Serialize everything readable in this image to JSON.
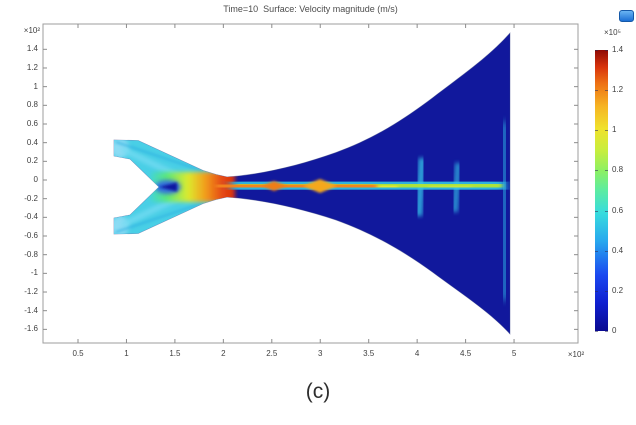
{
  "header": {
    "title": "Time=10  Surface: Velocity magnitude (m/s)"
  },
  "caption": "(c)",
  "axes": {
    "x": {
      "multiplier": "×10²",
      "ticks": [
        "0.5",
        "1",
        "1.5",
        "2",
        "2.5",
        "3",
        "3.5",
        "4",
        "4.5",
        "5"
      ]
    },
    "y": {
      "multiplier": "×10²",
      "ticks": [
        "1.4",
        "1.2",
        "1",
        "0.8",
        "0.6",
        "0.4",
        "0.2",
        "0",
        "-0.2",
        "-0.4",
        "-0.6",
        "-0.8",
        "-1",
        "-1.2",
        "-1.4",
        "-1.6"
      ]
    }
  },
  "colorbar": {
    "multiplier": "×10⁵",
    "ticks": [
      "1.4",
      "1.2",
      "1",
      "0.8",
      "0.6",
      "0.4",
      "0.2",
      "0"
    ],
    "min": 0,
    "max": 1.4,
    "colormap": "jet"
  },
  "icons": {
    "toolbar_icon": "graphics-toolbar-icon"
  },
  "colors": {
    "domain_navy": "#11189c",
    "jet_red": "#d92f10",
    "jet_orange": "#f3831c",
    "jet_yellow": "#f0e42a",
    "jet_green": "#8ce84a",
    "jet_cyan": "#35cdea",
    "axis_line": "#9d9d9d"
  },
  "chart_data": {
    "type": "heatmap",
    "title": "Time=10  Surface: Velocity magnitude (m/s)",
    "time": 10,
    "field": "Velocity magnitude",
    "unit": "m/s",
    "colormap": "jet",
    "x_axis": {
      "multiplier": 100,
      "ticks": [
        0.5,
        1,
        1.5,
        2,
        2.5,
        3,
        3.5,
        4,
        4.5,
        5
      ],
      "range_shown": [
        0.5,
        5
      ]
    },
    "y_axis": {
      "multiplier": 100,
      "ticks": [
        1.4,
        1.2,
        1,
        0.8,
        0.6,
        0.4,
        0.2,
        0,
        -0.2,
        -0.4,
        -0.6,
        -0.8,
        -1,
        -1.2,
        -1.4,
        -1.6
      ],
      "range_shown": [
        -1.6,
        1.4
      ]
    },
    "colorbar": {
      "multiplier": 100000,
      "min": 0,
      "max": 1.4,
      "ticks": [
        1.4,
        1.2,
        1,
        0.8,
        0.6,
        0.4,
        0.2,
        0
      ]
    },
    "geometry": {
      "description": "Y-shaped twin inlet duct (arms at about +/-23 deg, inlets at x=0.9e2, y=+/-(0.3..0.5)e2) merging at a splitter notch (tip near x=1.45e2, y=0) into a narrow throat around x=2e2..2.4e2, then an exponential horn expanding to the outlet at x=5e2 spanning y=-1.6e2..+1.55e2",
      "inlet_x_1e2": 0.9,
      "notch_tip_x_1e2": 1.45,
      "throat_x_1e2": 2.0,
      "outlet_x_1e2": 5.0,
      "outlet_y_span_1e2": [
        -1.6,
        1.55
      ]
    },
    "centerline_profile": {
      "x_1e2": [
        0.9,
        1.2,
        1.5,
        1.8,
        2.0,
        2.2,
        2.5,
        3.0,
        3.5,
        4.0,
        4.5,
        5.0
      ],
      "velocity_1e5": [
        0.45,
        0.5,
        0.65,
        1.0,
        1.35,
        1.4,
        1.25,
        1.1,
        0.95,
        0.7,
        0.55,
        0.45
      ]
    },
    "features": [
      "inlet arms carry cyan/light-blue flow (~0.4e5 m/s)",
      "velocity ramps cyan-green-yellow-orange-red through the converging junction",
      "red supersonic core jet at throat (~1.3-1.4e5 m/s) with orange shock-diamond cells to x~3.3e2",
      "yellow-green centerline ridge decaying downstream with cyan halo",
      "wavy cyan jet tail and vertical cyan streaks near x~4.2e2, 4.6e2 and along the outlet edge",
      "surrounding horn volume is quiescent dark blue (~0 m/s)"
    ]
  }
}
